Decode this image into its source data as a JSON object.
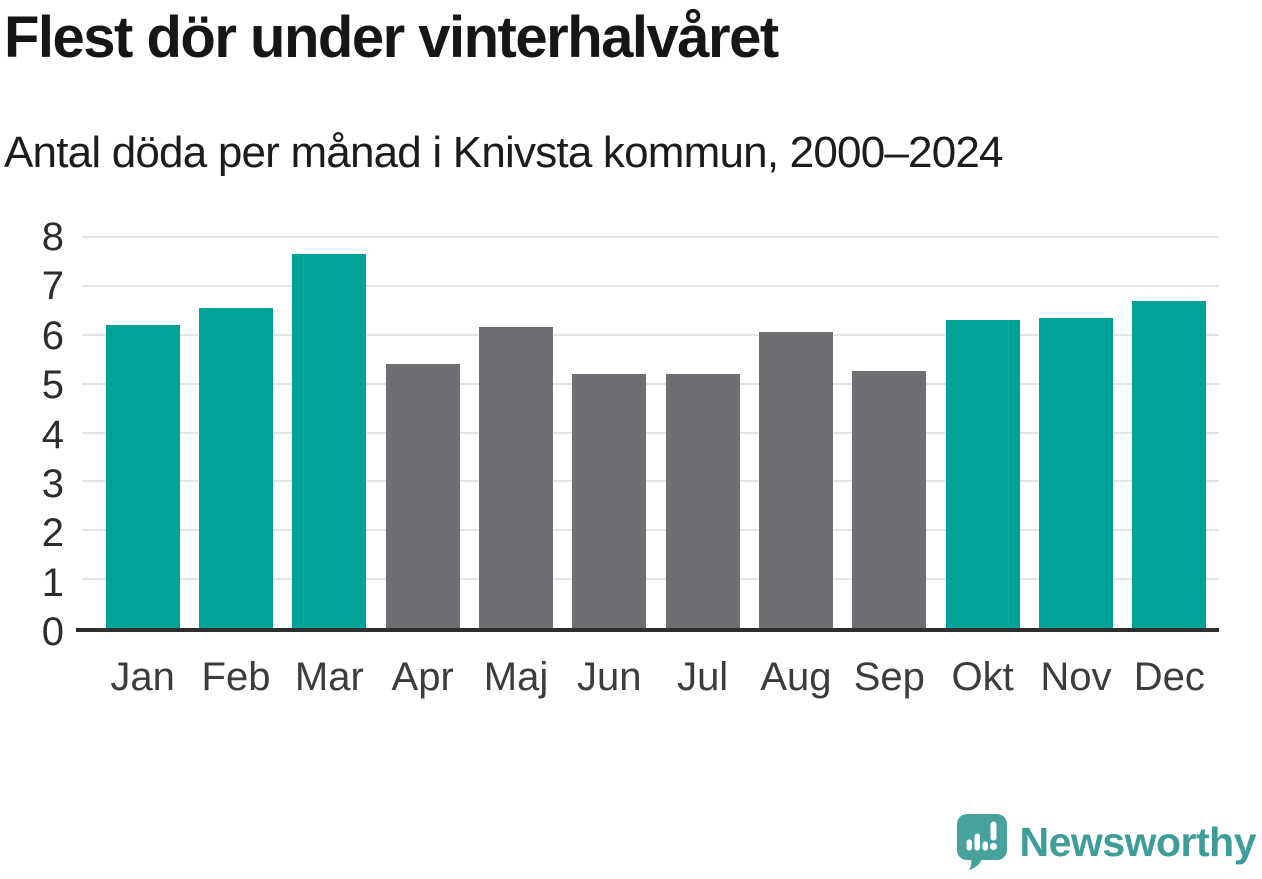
{
  "title": "Flest dör under vinterhalvåret",
  "subtitle": "Antal döda per månad i Knivsta kommun, 2000–2024",
  "branding": {
    "logo_text": "Newsworthy",
    "logo_color": "#47a19c",
    "logo_text_color": "#3e9d99",
    "logo_icon": "speech-bubble-bar-chart-exclamation"
  },
  "chart_data": {
    "type": "bar",
    "title": "Flest dör under vinterhalvåret",
    "subtitle": "Antal döda per månad i Knivsta kommun, 2000–2024",
    "categories": [
      "Jan",
      "Feb",
      "Mar",
      "Apr",
      "Maj",
      "Jun",
      "Jul",
      "Aug",
      "Sep",
      "Okt",
      "Nov",
      "Dec"
    ],
    "values": [
      6.2,
      6.55,
      7.65,
      5.4,
      6.15,
      5.2,
      5.2,
      6.05,
      5.25,
      6.3,
      6.35,
      6.7
    ],
    "bar_groups": [
      "winter",
      "winter",
      "winter",
      "summer",
      "summer",
      "summer",
      "summer",
      "summer",
      "summer",
      "winter",
      "winter",
      "winter"
    ],
    "colors": {
      "winter": "#00a39a",
      "summer": "#6e6e73"
    },
    "xlabel": "",
    "ylabel": "",
    "ylim": [
      0,
      8
    ],
    "yticks": [
      0,
      1,
      2,
      3,
      4,
      5,
      6,
      7,
      8
    ],
    "grid": true,
    "legend": "none"
  }
}
